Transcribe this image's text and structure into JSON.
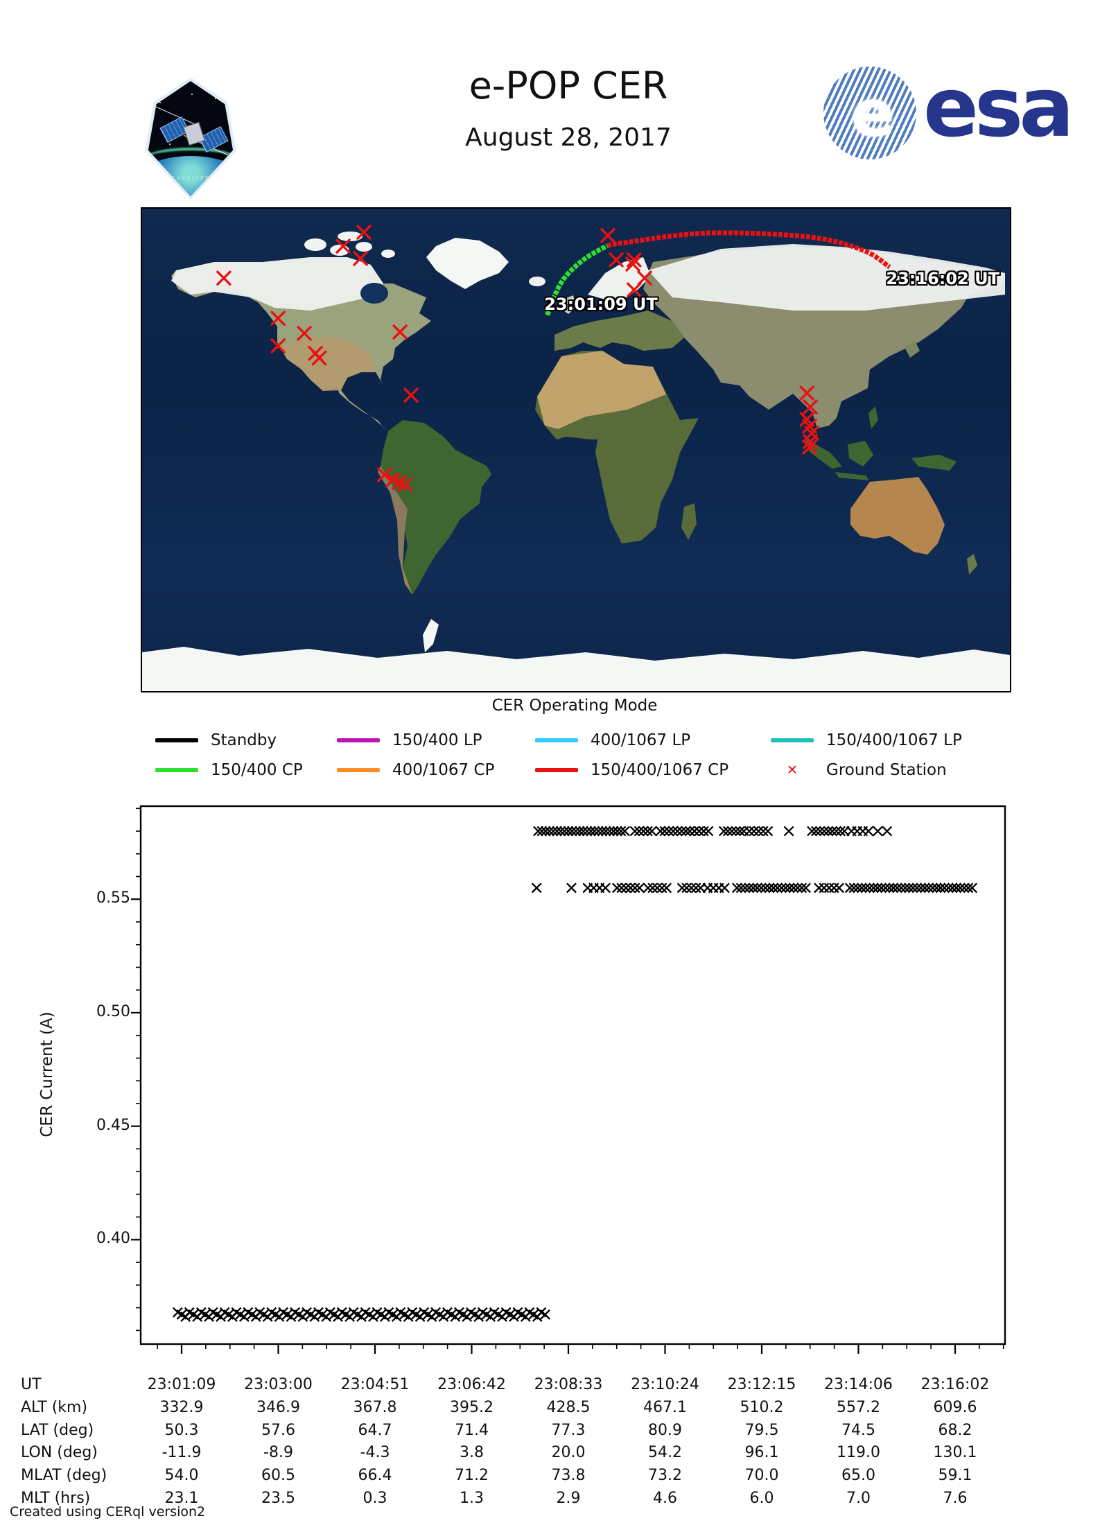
{
  "header": {
    "title": "e-POP CER",
    "date": "August 28, 2017",
    "mission_patch": "CASSIOPE",
    "esa_wordmark": "esa"
  },
  "map": {
    "start_label": "23:01:09 UT",
    "end_label": "23:16:02 UT",
    "lon_range": [
      -180,
      180
    ],
    "lat_range": [
      -90,
      90
    ],
    "station_color": "#e81212",
    "track": {
      "green_color": "#2ee02e",
      "red_color": "#e81212",
      "green_points": [
        [
          -11.9,
          50.3
        ],
        [
          -8.9,
          57.6
        ],
        [
          -4.3,
          64.7
        ],
        [
          3.8,
          71.4
        ],
        [
          13.0,
          76.2
        ]
      ],
      "red_points": [
        [
          13.0,
          76.2
        ],
        [
          20.0,
          77.3
        ],
        [
          54.2,
          80.9
        ],
        [
          96.1,
          79.5
        ],
        [
          119.0,
          74.5
        ],
        [
          130.1,
          68.2
        ]
      ]
    },
    "ground_stations": [
      [
        -146.1,
        64.1
      ],
      [
        -96.6,
        76.0
      ],
      [
        -88.0,
        81.2
      ],
      [
        -89.4,
        71.4
      ],
      [
        -123.6,
        49.1
      ],
      [
        -112.7,
        43.5
      ],
      [
        -123.6,
        38.8
      ],
      [
        -108.1,
        36.0
      ],
      [
        -106.5,
        34.3
      ],
      [
        -73.0,
        44.0
      ],
      [
        -68.4,
        20.4
      ],
      [
        -79.4,
        -9.3
      ],
      [
        -76.0,
        -11.2
      ],
      [
        -73.3,
        -12.2
      ],
      [
        -70.8,
        -12.9
      ],
      [
        13.2,
        80.0
      ],
      [
        16.7,
        70.9
      ],
      [
        24.1,
        70.9
      ],
      [
        23.6,
        69.3
      ],
      [
        28.5,
        64.1
      ],
      [
        24.1,
        59.7
      ],
      [
        95.8,
        21.2
      ],
      [
        97.2,
        16.0
      ],
      [
        95.8,
        11.4
      ],
      [
        96.9,
        8.8
      ],
      [
        97.8,
        6.2
      ],
      [
        97.2,
        3.1
      ],
      [
        96.9,
        1.0
      ]
    ]
  },
  "legend": {
    "title": "CER Operating Mode",
    "items": [
      {
        "label": "Standby",
        "color": "#000000",
        "type": "line"
      },
      {
        "label": "150/400 LP",
        "color": "#bb16b4",
        "type": "line"
      },
      {
        "label": "400/1067 LP",
        "color": "#33ccff",
        "type": "line"
      },
      {
        "label": "150/400/1067 LP",
        "color": "#1fc2b8",
        "type": "line"
      },
      {
        "label": "150/400 CP",
        "color": "#2ee02e",
        "type": "line"
      },
      {
        "label": "400/1067 CP",
        "color": "#ff8c26",
        "type": "line"
      },
      {
        "label": "150/400/1067 CP",
        "color": "#e81212",
        "type": "line"
      },
      {
        "label": "Ground Station",
        "color": "#e81212",
        "type": "x"
      }
    ]
  },
  "chart_data": {
    "type": "scatter",
    "title": "",
    "xlabel": "",
    "ylabel": "CER Current (A)",
    "ylim": [
      0.354,
      0.591
    ],
    "yticks": [
      0.4,
      0.45,
      0.5,
      0.55
    ],
    "y_minor_step": 0.01,
    "x_ticks": [
      "23:01:09",
      "23:03:00",
      "23:04:51",
      "23:06:42",
      "23:08:33",
      "23:10:24",
      "23:12:15",
      "23:14:06",
      "23:16:02"
    ],
    "x_minor_divisions": 4,
    "marker": "x",
    "marker_color": "#000000",
    "grid": false,
    "series": [
      {
        "name": "cer-current-high-band",
        "value": 0.58,
        "band": false,
        "segments": [
          [
            0.461,
            0.573,
            24
          ],
          [
            0.586,
            0.608,
            5
          ],
          [
            0.619,
            0.652,
            7
          ],
          [
            0.657,
            0.681,
            5
          ],
          [
            0.701,
            0.727,
            6
          ],
          [
            0.734,
            0.758,
            5
          ],
          [
            0.785,
            0.785,
            1
          ],
          [
            0.815,
            0.857,
            9
          ],
          [
            0.866,
            0.888,
            4
          ],
          [
            0.9,
            0.912,
            2
          ]
        ]
      },
      {
        "name": "cer-current-mid-band",
        "value": 0.555,
        "band": false,
        "segments": [
          [
            0.459,
            0.459,
            1
          ],
          [
            0.504,
            0.504,
            1
          ],
          [
            0.525,
            0.548,
            4
          ],
          [
            0.563,
            0.592,
            6
          ],
          [
            0.603,
            0.627,
            5
          ],
          [
            0.647,
            0.671,
            5
          ],
          [
            0.68,
            0.702,
            4
          ],
          [
            0.718,
            0.807,
            18
          ],
          [
            0.824,
            0.85,
            5
          ],
          [
            0.864,
            1.022,
            32
          ]
        ]
      },
      {
        "name": "cer-current-standby-band",
        "value": 0.367,
        "band": true,
        "segments": [
          [
            -0.005,
            0.47,
            95
          ]
        ]
      }
    ]
  },
  "table": {
    "rows": [
      {
        "label": "UT",
        "values": [
          "23:01:09",
          "23:03:00",
          "23:04:51",
          "23:06:42",
          "23:08:33",
          "23:10:24",
          "23:12:15",
          "23:14:06",
          "23:16:02"
        ]
      },
      {
        "label": "ALT (km)",
        "values": [
          "332.9",
          "346.9",
          "367.8",
          "395.2",
          "428.5",
          "467.1",
          "510.2",
          "557.2",
          "609.6"
        ]
      },
      {
        "label": "LAT (deg)",
        "values": [
          "50.3",
          "57.6",
          "64.7",
          "71.4",
          "77.3",
          "80.9",
          "79.5",
          "74.5",
          "68.2"
        ]
      },
      {
        "label": "LON (deg)",
        "values": [
          "-11.9",
          "-8.9",
          "-4.3",
          "3.8",
          "20.0",
          "54.2",
          "96.1",
          "119.0",
          "130.1"
        ]
      },
      {
        "label": "MLAT (deg)",
        "values": [
          "54.0",
          "60.5",
          "66.4",
          "71.2",
          "73.8",
          "73.2",
          "70.0",
          "65.0",
          "59.1"
        ]
      },
      {
        "label": "MLT (hrs)",
        "values": [
          "23.1",
          "23.5",
          "0.3",
          "1.3",
          "2.9",
          "4.6",
          "6.0",
          "7.0",
          "7.6"
        ]
      }
    ]
  },
  "footer": {
    "text": "Created using CERql version2"
  }
}
